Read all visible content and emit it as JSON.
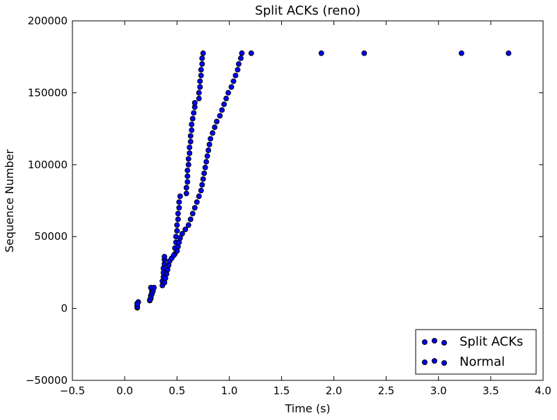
{
  "chart_data": {
    "type": "scatter",
    "title": "Split ACKs (reno)",
    "xlabel": "Time (s)",
    "ylabel": "Sequence Number",
    "xlim": [
      -0.5,
      4.0
    ],
    "ylim": [
      -50000,
      200000
    ],
    "x_ticks": [
      -0.5,
      0.0,
      0.5,
      1.0,
      1.5,
      2.0,
      2.5,
      3.0,
      3.5,
      4.0
    ],
    "x_tick_labels": [
      "−0.5",
      "0.0",
      "0.5",
      "1.0",
      "1.5",
      "2.0",
      "2.5",
      "3.0",
      "3.5",
      "4.0"
    ],
    "y_ticks": [
      -50000,
      0,
      50000,
      100000,
      150000,
      200000
    ],
    "y_tick_labels": [
      "−50000",
      "0",
      "50000",
      "100000",
      "150000",
      "200000"
    ],
    "grid": false,
    "legend_position": "bottom-right",
    "marker_color": "#0000ff",
    "marker_edge": "#000000",
    "series": [
      {
        "name": "Split ACKs",
        "points": [
          [
            0.12,
            500
          ],
          [
            0.12,
            2000
          ],
          [
            0.12,
            3500
          ],
          [
            0.13,
            4500
          ],
          [
            0.24,
            5500
          ],
          [
            0.25,
            7000
          ],
          [
            0.25,
            9000
          ],
          [
            0.26,
            11000
          ],
          [
            0.26,
            13000
          ],
          [
            0.25,
            14500
          ],
          [
            0.36,
            16000
          ],
          [
            0.36,
            19000
          ],
          [
            0.37,
            22000
          ],
          [
            0.37,
            25000
          ],
          [
            0.37,
            28000
          ],
          [
            0.38,
            31000
          ],
          [
            0.38,
            34000
          ],
          [
            0.38,
            36000
          ],
          [
            0.48,
            38000
          ],
          [
            0.48,
            42000
          ],
          [
            0.49,
            46000
          ],
          [
            0.49,
            50000
          ],
          [
            0.5,
            54000
          ],
          [
            0.5,
            58000
          ],
          [
            0.51,
            62000
          ],
          [
            0.51,
            66000
          ],
          [
            0.52,
            70000
          ],
          [
            0.52,
            74000
          ],
          [
            0.53,
            78000
          ],
          [
            0.59,
            80000
          ],
          [
            0.59,
            84000
          ],
          [
            0.6,
            88000
          ],
          [
            0.6,
            92000
          ],
          [
            0.6,
            96000
          ],
          [
            0.61,
            100000
          ],
          [
            0.61,
            104000
          ],
          [
            0.62,
            108000
          ],
          [
            0.62,
            112000
          ],
          [
            0.63,
            116000
          ],
          [
            0.63,
            120000
          ],
          [
            0.64,
            124000
          ],
          [
            0.64,
            128000
          ],
          [
            0.65,
            132000
          ],
          [
            0.66,
            136000
          ],
          [
            0.67,
            140000
          ],
          [
            0.67,
            143000
          ],
          [
            0.71,
            146000
          ],
          [
            0.71,
            150000
          ],
          [
            0.72,
            154000
          ],
          [
            0.72,
            158000
          ],
          [
            0.73,
            162000
          ],
          [
            0.73,
            166000
          ],
          [
            0.74,
            170000
          ],
          [
            0.74,
            174000
          ],
          [
            0.75,
            177500
          ]
        ]
      },
      {
        "name": "Normal",
        "points": [
          [
            0.12,
            1000
          ],
          [
            0.12,
            3000
          ],
          [
            0.24,
            6000
          ],
          [
            0.25,
            8000
          ],
          [
            0.26,
            10000
          ],
          [
            0.27,
            12000
          ],
          [
            0.28,
            14500
          ],
          [
            0.38,
            18000
          ],
          [
            0.39,
            21000
          ],
          [
            0.4,
            24000
          ],
          [
            0.41,
            27000
          ],
          [
            0.42,
            30000
          ],
          [
            0.43,
            33000
          ],
          [
            0.45,
            35000
          ],
          [
            0.47,
            37000
          ],
          [
            0.5,
            40000
          ],
          [
            0.51,
            43000
          ],
          [
            0.52,
            46000
          ],
          [
            0.53,
            49000
          ],
          [
            0.55,
            52000
          ],
          [
            0.58,
            55000
          ],
          [
            0.61,
            58000
          ],
          [
            0.63,
            62000
          ],
          [
            0.65,
            66000
          ],
          [
            0.67,
            70000
          ],
          [
            0.69,
            74000
          ],
          [
            0.71,
            78000
          ],
          [
            0.73,
            82000
          ],
          [
            0.74,
            86000
          ],
          [
            0.75,
            90000
          ],
          [
            0.76,
            94000
          ],
          [
            0.77,
            98000
          ],
          [
            0.78,
            102000
          ],
          [
            0.79,
            106000
          ],
          [
            0.8,
            110000
          ],
          [
            0.81,
            114000
          ],
          [
            0.82,
            118000
          ],
          [
            0.84,
            122000
          ],
          [
            0.86,
            126000
          ],
          [
            0.88,
            130000
          ],
          [
            0.91,
            134000
          ],
          [
            0.93,
            138000
          ],
          [
            0.95,
            142000
          ],
          [
            0.97,
            146000
          ],
          [
            0.99,
            150000
          ],
          [
            1.02,
            154000
          ],
          [
            1.04,
            158000
          ],
          [
            1.06,
            162000
          ],
          [
            1.08,
            166000
          ],
          [
            1.09,
            170000
          ],
          [
            1.11,
            174000
          ],
          [
            1.12,
            177500
          ],
          [
            1.21,
            177500
          ],
          [
            1.88,
            177500
          ],
          [
            2.29,
            177500
          ],
          [
            3.22,
            177500
          ],
          [
            3.67,
            177500
          ]
        ]
      }
    ]
  }
}
